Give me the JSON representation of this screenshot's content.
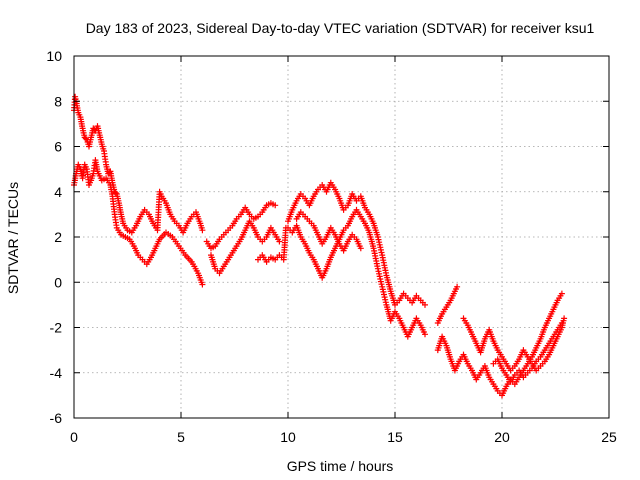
{
  "chart_data": {
    "type": "scatter",
    "title": "Day 183 of 2023, Sidereal Day-to-day VTEC variation (SDTVAR) for receiver ksu1",
    "xlabel": "GPS time / hours",
    "ylabel": "SDTVAR / TECUs",
    "xlim": [
      0,
      25
    ],
    "ylim": [
      -6,
      10
    ],
    "xticks": [
      "0",
      "5",
      "10",
      "15",
      "20",
      "25"
    ],
    "yticks": [
      "-6",
      "-4",
      "-2",
      "0",
      "2",
      "4",
      "6",
      "8",
      "10"
    ],
    "grid": true,
    "marker": "+",
    "series": [
      {
        "name": "SDTVAR",
        "color": "#ff0000",
        "tracks": [
          [
            [
              0.0,
              4.3
            ],
            [
              0.1,
              4.8
            ],
            [
              0.2,
              5.2
            ],
            [
              0.3,
              5.0
            ],
            [
              0.4,
              4.6
            ],
            [
              0.5,
              5.2
            ],
            [
              0.6,
              5.0
            ],
            [
              0.7,
              4.3
            ],
            [
              0.8,
              4.5
            ],
            [
              0.9,
              4.8
            ],
            [
              1.0,
              5.4
            ],
            [
              1.1,
              4.9
            ],
            [
              1.3,
              4.5
            ],
            [
              1.5,
              4.6
            ],
            [
              1.7,
              4.3
            ],
            [
              1.8,
              3.8
            ],
            [
              1.9,
              3.0
            ],
            [
              2.0,
              2.4
            ],
            [
              2.2,
              2.1
            ],
            [
              2.4,
              2.0
            ],
            [
              2.6,
              1.9
            ],
            [
              2.8,
              1.6
            ],
            [
              3.0,
              1.2
            ],
            [
              3.2,
              1.0
            ],
            [
              3.4,
              0.8
            ],
            [
              3.6,
              1.1
            ],
            [
              3.8,
              1.5
            ],
            [
              4.0,
              1.9
            ],
            [
              4.3,
              2.2
            ],
            [
              4.6,
              2.0
            ],
            [
              4.9,
              1.6
            ],
            [
              5.2,
              1.2
            ],
            [
              5.5,
              0.9
            ],
            [
              5.8,
              0.4
            ],
            [
              6.0,
              -0.1
            ]
          ],
          [
            [
              0.0,
              7.6
            ],
            [
              0.05,
              8.2
            ],
            [
              0.1,
              8.0
            ],
            [
              0.2,
              7.5
            ],
            [
              0.3,
              7.3
            ],
            [
              0.4,
              6.8
            ],
            [
              0.5,
              6.4
            ],
            [
              0.6,
              6.3
            ],
            [
              0.7,
              6.0
            ],
            [
              0.8,
              6.4
            ],
            [
              0.9,
              6.8
            ],
            [
              1.0,
              6.7
            ],
            [
              1.1,
              6.9
            ],
            [
              1.2,
              6.5
            ],
            [
              1.3,
              6.1
            ],
            [
              1.4,
              5.8
            ],
            [
              1.5,
              5.2
            ],
            [
              1.6,
              4.8
            ],
            [
              1.7,
              4.9
            ],
            [
              1.8,
              4.4
            ],
            [
              1.9,
              4.0
            ],
            [
              2.0,
              3.9
            ],
            [
              2.1,
              3.5
            ],
            [
              2.2,
              3.0
            ],
            [
              2.3,
              2.6
            ],
            [
              2.5,
              2.3
            ],
            [
              2.7,
              2.2
            ],
            [
              2.9,
              2.5
            ],
            [
              3.1,
              2.9
            ],
            [
              3.3,
              3.2
            ],
            [
              3.5,
              3.0
            ],
            [
              3.7,
              2.6
            ],
            [
              3.9,
              2.3
            ],
            [
              4.0,
              4.0
            ],
            [
              4.1,
              3.8
            ],
            [
              4.3,
              3.5
            ],
            [
              4.5,
              3.0
            ],
            [
              4.7,
              2.7
            ],
            [
              4.9,
              2.5
            ],
            [
              5.1,
              2.2
            ],
            [
              5.3,
              2.6
            ],
            [
              5.5,
              2.9
            ],
            [
              5.7,
              3.1
            ],
            [
              5.9,
              2.6
            ],
            [
              6.0,
              2.3
            ]
          ],
          [
            [
              6.4,
              1.2
            ],
            [
              6.6,
              0.6
            ],
            [
              6.8,
              0.4
            ],
            [
              7.0,
              0.7
            ],
            [
              7.2,
              1.0
            ],
            [
              7.4,
              1.3
            ],
            [
              7.6,
              1.6
            ],
            [
              7.8,
              1.9
            ],
            [
              8.0,
              2.3
            ],
            [
              8.2,
              2.7
            ],
            [
              8.4,
              2.4
            ],
            [
              8.6,
              2.0
            ],
            [
              8.8,
              1.8
            ],
            [
              9.0,
              2.0
            ],
            [
              9.2,
              2.4
            ],
            [
              9.4,
              2.1
            ],
            [
              9.6,
              1.8
            ]
          ],
          [
            [
              6.2,
              1.8
            ],
            [
              6.4,
              1.5
            ],
            [
              6.6,
              1.6
            ],
            [
              6.8,
              1.9
            ],
            [
              7.0,
              2.1
            ],
            [
              7.2,
              2.3
            ],
            [
              7.4,
              2.5
            ],
            [
              7.6,
              2.8
            ],
            [
              7.8,
              3.0
            ],
            [
              8.0,
              3.3
            ],
            [
              8.2,
              3.0
            ],
            [
              8.4,
              2.8
            ],
            [
              8.6,
              2.9
            ],
            [
              8.8,
              3.1
            ],
            [
              9.0,
              3.4
            ],
            [
              9.2,
              3.5
            ],
            [
              9.4,
              3.4
            ]
          ],
          [
            [
              8.6,
              1.0
            ],
            [
              8.8,
              1.2
            ],
            [
              9.0,
              0.9
            ],
            [
              9.2,
              1.1
            ],
            [
              9.4,
              1.0
            ],
            [
              9.6,
              1.2
            ],
            [
              9.8,
              1.0
            ],
            [
              9.9,
              2.4
            ]
          ],
          [
            [
              10.0,
              2.7
            ],
            [
              10.2,
              3.2
            ],
            [
              10.4,
              3.6
            ],
            [
              10.6,
              3.9
            ],
            [
              10.8,
              3.7
            ],
            [
              11.0,
              3.4
            ],
            [
              11.2,
              3.8
            ],
            [
              11.4,
              4.1
            ],
            [
              11.6,
              4.3
            ],
            [
              11.8,
              4.0
            ],
            [
              12.0,
              4.4
            ],
            [
              12.2,
              4.1
            ],
            [
              12.4,
              3.7
            ],
            [
              12.6,
              3.2
            ],
            [
              12.8,
              3.4
            ],
            [
              13.0,
              3.9
            ],
            [
              13.2,
              3.6
            ],
            [
              13.4,
              3.8
            ],
            [
              13.6,
              3.3
            ],
            [
              13.8,
              3.0
            ],
            [
              14.0,
              2.6
            ],
            [
              14.2,
              2.0
            ],
            [
              14.4,
              1.2
            ],
            [
              14.6,
              0.3
            ],
            [
              14.8,
              -0.4
            ],
            [
              15.0,
              -1.0
            ],
            [
              15.2,
              -0.8
            ],
            [
              15.4,
              -0.5
            ],
            [
              15.6,
              -0.7
            ],
            [
              15.8,
              -0.9
            ],
            [
              16.0,
              -0.6
            ],
            [
              16.2,
              -0.8
            ],
            [
              16.4,
              -1.0
            ]
          ],
          [
            [
              10.0,
              2.4
            ],
            [
              10.2,
              2.2
            ],
            [
              10.4,
              2.5
            ],
            [
              10.6,
              2.0
            ],
            [
              10.8,
              1.7
            ],
            [
              11.0,
              1.3
            ],
            [
              11.2,
              1.0
            ],
            [
              11.4,
              0.6
            ],
            [
              11.6,
              0.2
            ],
            [
              11.8,
              0.6
            ],
            [
              12.0,
              1.1
            ],
            [
              12.2,
              1.5
            ],
            [
              12.4,
              1.9
            ],
            [
              12.6,
              2.3
            ],
            [
              12.8,
              2.5
            ],
            [
              13.0,
              2.9
            ],
            [
              13.2,
              3.2
            ],
            [
              13.4,
              2.9
            ],
            [
              13.6,
              2.6
            ],
            [
              13.8,
              2.2
            ],
            [
              14.0,
              1.5
            ],
            [
              14.2,
              0.6
            ],
            [
              14.4,
              -0.2
            ],
            [
              14.6,
              -1.0
            ],
            [
              14.8,
              -1.7
            ],
            [
              15.0,
              -1.3
            ],
            [
              15.2,
              -1.6
            ],
            [
              15.4,
              -2.0
            ],
            [
              15.6,
              -2.4
            ],
            [
              15.8,
              -2.0
            ],
            [
              16.0,
              -1.6
            ],
            [
              16.2,
              -1.9
            ],
            [
              16.4,
              -2.3
            ]
          ],
          [
            [
              10.4,
              2.8
            ],
            [
              10.6,
              3.1
            ],
            [
              10.8,
              2.9
            ],
            [
              11.0,
              2.7
            ],
            [
              11.2,
              2.5
            ],
            [
              11.4,
              2.1
            ],
            [
              11.6,
              1.7
            ],
            [
              11.8,
              2.0
            ],
            [
              12.0,
              2.4
            ],
            [
              12.2,
              2.1
            ],
            [
              12.4,
              1.7
            ],
            [
              12.6,
              1.4
            ],
            [
              12.8,
              1.8
            ],
            [
              13.0,
              2.1
            ],
            [
              13.2,
              1.9
            ],
            [
              13.4,
              1.5
            ]
          ],
          [
            [
              17.0,
              -1.8
            ],
            [
              17.2,
              -1.4
            ],
            [
              17.4,
              -1.1
            ],
            [
              17.6,
              -0.8
            ],
            [
              17.8,
              -0.4
            ],
            [
              17.9,
              -0.2
            ]
          ],
          [
            [
              17.0,
              -3.0
            ],
            [
              17.2,
              -2.4
            ],
            [
              17.4,
              -2.8
            ],
            [
              17.6,
              -3.4
            ],
            [
              17.8,
              -3.9
            ],
            [
              18.0,
              -3.5
            ],
            [
              18.2,
              -3.2
            ],
            [
              18.4,
              -3.6
            ],
            [
              18.6,
              -3.9
            ],
            [
              18.8,
              -4.3
            ],
            [
              19.0,
              -4.0
            ],
            [
              19.2,
              -3.7
            ],
            [
              19.4,
              -4.2
            ],
            [
              19.6,
              -4.5
            ],
            [
              19.8,
              -4.8
            ],
            [
              20.0,
              -5.0
            ],
            [
              20.2,
              -4.6
            ],
            [
              20.4,
              -4.3
            ],
            [
              20.6,
              -4.5
            ],
            [
              20.8,
              -4.2
            ],
            [
              21.0,
              -3.9
            ],
            [
              21.2,
              -3.6
            ],
            [
              21.4,
              -3.3
            ],
            [
              21.6,
              -2.9
            ],
            [
              21.8,
              -2.5
            ],
            [
              22.0,
              -2.0
            ],
            [
              22.2,
              -1.6
            ],
            [
              22.4,
              -1.2
            ],
            [
              22.6,
              -0.8
            ],
            [
              22.8,
              -0.5
            ]
          ],
          [
            [
              18.2,
              -1.6
            ],
            [
              18.4,
              -1.9
            ],
            [
              18.6,
              -2.3
            ],
            [
              18.8,
              -2.7
            ],
            [
              19.0,
              -3.1
            ],
            [
              19.2,
              -2.5
            ],
            [
              19.4,
              -2.1
            ],
            [
              19.6,
              -2.6
            ],
            [
              19.8,
              -3.0
            ],
            [
              20.0,
              -3.3
            ],
            [
              20.2,
              -3.6
            ],
            [
              20.4,
              -3.9
            ],
            [
              20.6,
              -3.7
            ],
            [
              20.8,
              -3.4
            ],
            [
              21.0,
              -3.0
            ],
            [
              21.2,
              -3.3
            ],
            [
              21.4,
              -3.6
            ],
            [
              21.6,
              -3.9
            ],
            [
              21.8,
              -3.7
            ],
            [
              22.0,
              -3.5
            ],
            [
              22.2,
              -3.2
            ],
            [
              22.4,
              -2.8
            ],
            [
              22.6,
              -2.4
            ],
            [
              22.8,
              -2.0
            ],
            [
              22.9,
              -1.6
            ]
          ],
          [
            [
              19.6,
              -3.6
            ],
            [
              19.8,
              -3.4
            ],
            [
              20.0,
              -3.8
            ],
            [
              20.2,
              -4.1
            ],
            [
              20.4,
              -4.4
            ],
            [
              20.6,
              -4.1
            ],
            [
              20.8,
              -3.9
            ],
            [
              21.0,
              -4.2
            ],
            [
              21.2,
              -4.0
            ],
            [
              21.4,
              -3.8
            ],
            [
              21.6,
              -3.5
            ],
            [
              21.8,
              -3.3
            ],
            [
              22.0,
              -3.0
            ],
            [
              22.2,
              -2.7
            ],
            [
              22.4,
              -2.4
            ],
            [
              22.6,
              -2.1
            ],
            [
              22.8,
              -1.8
            ]
          ]
        ]
      }
    ]
  }
}
